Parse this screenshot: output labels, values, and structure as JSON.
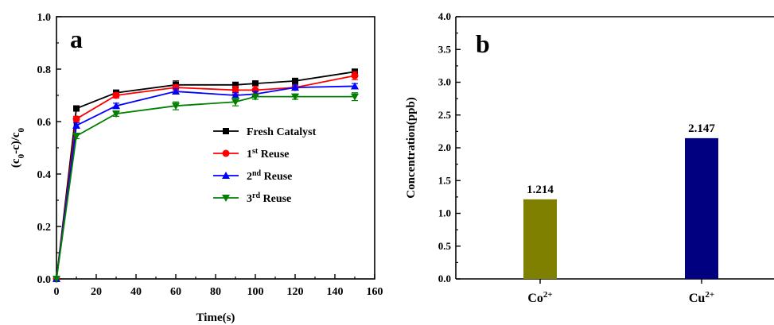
{
  "chart_data": [
    {
      "type": "line",
      "panel_label": "a",
      "xlabel": "Time(s)",
      "ylabel": "(c0-c)/c0",
      "xlim": [
        0,
        160
      ],
      "ylim": [
        0.0,
        1.0
      ],
      "x_ticks": [
        "0",
        "20",
        "40",
        "60",
        "80",
        "100",
        "120",
        "140",
        "160"
      ],
      "y_ticks": [
        "0.0",
        "0.2",
        "0.4",
        "0.6",
        "0.8",
        "1.0"
      ],
      "grid": false,
      "legend_position": "center-right",
      "x": [
        0,
        10,
        30,
        60,
        90,
        100,
        120,
        150
      ],
      "series": [
        {
          "name": "Fresh Catalyst",
          "name_base": "Fresh Catalyst",
          "name_sup": "",
          "name_suffix": "",
          "color": "#000000",
          "marker": "square",
          "values": [
            0.0,
            0.65,
            0.71,
            0.74,
            0.74,
            0.745,
            0.755,
            0.79
          ],
          "errors": [
            0,
            0.01,
            0.01,
            0.015,
            0.01,
            0.01,
            0.01,
            0.01
          ]
        },
        {
          "name": "1st Reuse",
          "name_base": "1",
          "name_sup": "st",
          "name_suffix": " Reuse",
          "color": "#ff0000",
          "marker": "circle",
          "values": [
            0.0,
            0.61,
            0.7,
            0.73,
            0.72,
            0.72,
            0.73,
            0.775
          ],
          "errors": [
            0,
            0.01,
            0.01,
            0.01,
            0.015,
            0.015,
            0.01,
            0.015
          ]
        },
        {
          "name": "2nd Reuse",
          "name_base": "2",
          "name_sup": "nd",
          "name_suffix": " Reuse",
          "color": "#0000ff",
          "marker": "triangle-up",
          "values": [
            0.0,
            0.585,
            0.66,
            0.715,
            0.7,
            0.705,
            0.73,
            0.735
          ],
          "errors": [
            0,
            0.01,
            0.01,
            0.01,
            0.01,
            0.01,
            0.01,
            0.01
          ]
        },
        {
          "name": "3rd Reuse",
          "name_base": "3",
          "name_sup": "rd",
          "name_suffix": " Reuse",
          "color": "#008000",
          "marker": "triangle-down",
          "values": [
            0.0,
            0.545,
            0.63,
            0.66,
            0.675,
            0.695,
            0.695,
            0.695
          ],
          "errors": [
            0,
            0.01,
            0.01,
            0.015,
            0.015,
            0.01,
            0.01,
            0.015
          ]
        }
      ]
    },
    {
      "type": "bar",
      "panel_label": "b",
      "xlabel": "",
      "ylabel": "Concentration(ppb)",
      "ylim": [
        0.0,
        4.0
      ],
      "y_ticks": [
        "0.0",
        "0.5",
        "1.0",
        "1.5",
        "2.0",
        "2.5",
        "3.0",
        "3.5",
        "4.0"
      ],
      "grid": false,
      "categories": [
        {
          "base": "Co",
          "sup": "2+"
        },
        {
          "base": "Cu",
          "sup": "2+"
        }
      ],
      "values": [
        1.214,
        2.147
      ],
      "value_labels": [
        "1.214",
        "2.147"
      ],
      "colors": [
        "#808000",
        "#000080"
      ]
    }
  ]
}
